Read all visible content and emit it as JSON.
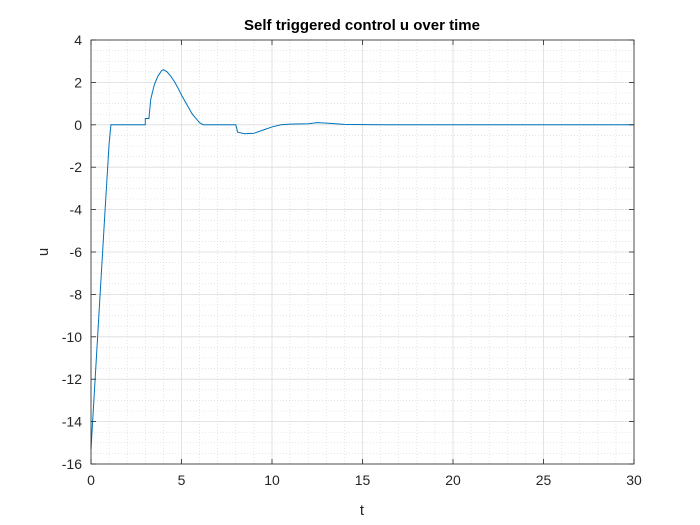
{
  "chart_data": {
    "type": "line",
    "title": "Self triggered control u over time",
    "xlabel": "t",
    "ylabel": "u",
    "xlim": [
      0,
      30
    ],
    "ylim": [
      -16,
      4
    ],
    "xticks": [
      0,
      5,
      10,
      15,
      20,
      25,
      30
    ],
    "yticks": [
      -16,
      -14,
      -12,
      -10,
      -8,
      -6,
      -4,
      -2,
      0,
      2,
      4
    ],
    "xtick_labels": [
      "0",
      "5",
      "10",
      "15",
      "20",
      "25",
      "30"
    ],
    "ytick_labels": [
      "-16",
      "-14",
      "-12",
      "-10",
      "-8",
      "-6",
      "-4",
      "-2",
      "0",
      "2",
      "4"
    ],
    "grid": true,
    "minor_grid": true,
    "line_color": "#0072BD",
    "series": [
      {
        "x": [
          0,
          0.2,
          0.4,
          0.6,
          0.8,
          1.0,
          1.1,
          1.2,
          3.0,
          3.0,
          3.2,
          3.3,
          3.5,
          3.7,
          3.9,
          4.0,
          4.2,
          4.4,
          4.6,
          4.8,
          5.0,
          5.2,
          5.4,
          5.6,
          5.8,
          6.0,
          6.2,
          7.0,
          8.0,
          8.1,
          8.5,
          9.0,
          9.5,
          10.0,
          10.5,
          11.0,
          12.0,
          12.5,
          13.0,
          14.0,
          16.0,
          20.0,
          25.0,
          30.0
        ],
        "y": [
          -15.3,
          -12.4,
          -9.5,
          -6.6,
          -3.7,
          -0.9,
          0.0,
          0.0,
          0.0,
          0.3,
          0.3,
          1.2,
          1.9,
          2.3,
          2.55,
          2.6,
          2.5,
          2.3,
          2.05,
          1.75,
          1.4,
          1.1,
          0.8,
          0.5,
          0.3,
          0.1,
          0.0,
          0.0,
          0.0,
          -0.35,
          -0.42,
          -0.4,
          -0.25,
          -0.1,
          0.0,
          0.03,
          0.05,
          0.1,
          0.08,
          0.02,
          0.0,
          0.0,
          0.0,
          0.0
        ]
      }
    ]
  }
}
